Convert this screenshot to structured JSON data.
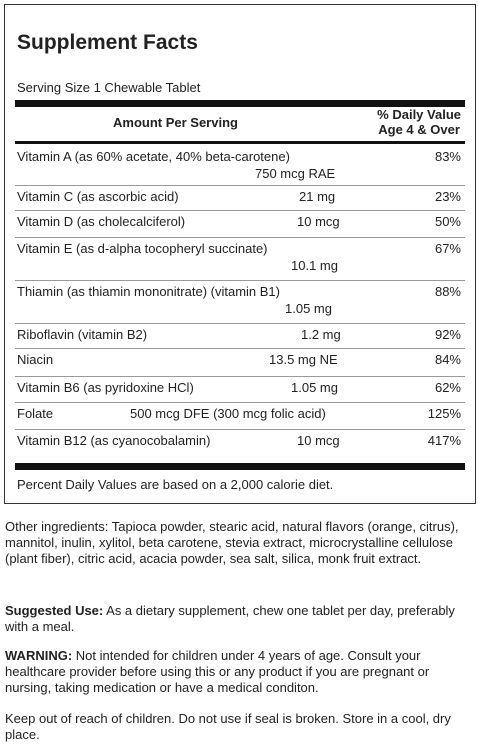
{
  "title": "Supplement Facts",
  "serving_size": "Serving Size 1 Chewable Tablet",
  "header": {
    "amount_per_serving": "Amount Per Serving",
    "dv_line1": "% Daily Value",
    "dv_line2": "Age 4 & Over"
  },
  "nutrients": [
    {
      "name": "Vitamin A (as 60% acetate, 40% beta-carotene)",
      "amount": "750 mcg RAE",
      "dv": "83%"
    },
    {
      "name": "Vitamin C (as ascorbic acid)",
      "amount": "21 mg",
      "dv": "23%"
    },
    {
      "name": "Vitamin D (as cholecalciferol)",
      "amount": "10 mcg",
      "dv": "50%"
    },
    {
      "name": "Vitamin E (as d-alpha tocopheryl succinate)",
      "amount": "10.1 mg",
      "dv": "67%"
    },
    {
      "name": "Thiamin (as thiamin mononitrate) (vitamin B1)",
      "amount": "1.05 mg",
      "dv": "88%"
    },
    {
      "name": "Riboflavin (vitamin B2)",
      "amount": "1.2 mg",
      "dv": "92%"
    },
    {
      "name": "Niacin",
      "amount": "13.5 mg NE",
      "dv": "84%"
    },
    {
      "name": "Vitamin B6 (as pyridoxine HCl)",
      "amount": "1.05 mg",
      "dv": "62%"
    },
    {
      "name": "Folate",
      "amount": "500 mcg DFE (300 mcg folic acid)",
      "dv": "125%"
    },
    {
      "name": "Vitamin B12 (as cyanocobalamin)",
      "amount": "10 mcg",
      "dv": "417%"
    }
  ],
  "footnote": "Percent Daily Values are based on a 2,000 calorie diet.",
  "other_ingredients": "Other ingredients: Tapioca powder, stearic acid, natural flavors (orange, citrus), mannitol, inulin, xylitol, beta carotene, stevia extract, microcrystalline cellulose (plant fiber), citric acid, acacia powder, sea salt, silica, monk fruit extract.",
  "suggested_use": {
    "label": "Suggested Use:",
    "text": " As a dietary supplement, chew one tablet per day, preferably with a meal."
  },
  "warning": {
    "label": "WARNING:",
    "text": " Not intended for children under 4 years of age. Consult your healthcare provider before using this or any product if you are pregnant or nursing, taking medication or have a medical conditon."
  },
  "keep_out": "Keep out of reach of children. Do not use if seal is broken. Store in a cool, dry place."
}
